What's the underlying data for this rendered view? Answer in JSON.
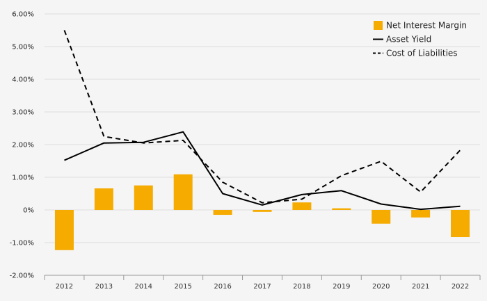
{
  "chart_data": {
    "type": "bar+line",
    "categories": [
      "2012",
      "2013",
      "2014",
      "2015",
      "2016",
      "2017",
      "2018",
      "2019",
      "2020",
      "2021",
      "2022"
    ],
    "ylim": [
      -2,
      6
    ],
    "yticks": [
      {
        "value": 6,
        "label": "6.00%"
      },
      {
        "value": 5,
        "label": "5.00%"
      },
      {
        "value": 4,
        "label": "4.00%"
      },
      {
        "value": 3,
        "label": "3.00%"
      },
      {
        "value": 2,
        "label": "2.00%"
      },
      {
        "value": 1,
        "label": "1.00%"
      },
      {
        "value": 0,
        "label": "0%"
      },
      {
        "value": -1,
        "label": "-1.00%"
      },
      {
        "value": -2,
        "label": "-2.00%"
      }
    ],
    "grid": true,
    "legend_position": "top-right",
    "series": [
      {
        "name": "Net Interest Margin",
        "kind": "bar",
        "color": "#f5ab00",
        "values": [
          -1.23,
          0.66,
          0.75,
          1.09,
          -0.15,
          -0.06,
          0.23,
          0.05,
          -0.42,
          -0.23,
          -0.83
        ]
      },
      {
        "name": "Asset Yield",
        "kind": "line",
        "style": "solid",
        "color": "#000000",
        "values": [
          1.52,
          2.05,
          2.07,
          2.39,
          0.5,
          0.15,
          0.47,
          0.59,
          0.18,
          0.02,
          0.11
        ]
      },
      {
        "name": "Cost of Liabilities",
        "kind": "line",
        "style": "dashed",
        "color": "#000000",
        "values": [
          5.5,
          2.25,
          2.05,
          2.13,
          0.85,
          0.22,
          0.33,
          1.05,
          1.49,
          0.55,
          1.83
        ]
      }
    ]
  }
}
